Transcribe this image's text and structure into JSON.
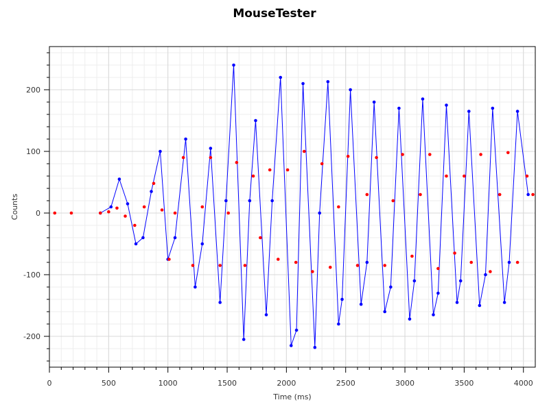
{
  "chart_data": {
    "type": "scatter",
    "title": "MouseTester",
    "xlabel": "Time (ms)",
    "ylabel": "Counts",
    "xlim": [
      0,
      4100
    ],
    "ylim": [
      -250,
      270
    ],
    "grid": true,
    "xticks": [
      0,
      500,
      1000,
      1500,
      2000,
      2500,
      3000,
      3500,
      4000
    ],
    "yticks": [
      -200,
      -100,
      0,
      100,
      200
    ],
    "series": [
      {
        "color": "#0000ff",
        "markers": true,
        "line": true,
        "x": [
          430,
          520,
          590,
          660,
          730,
          790,
          860,
          935,
          1000,
          1060,
          1150,
          1230,
          1290,
          1360,
          1440,
          1490,
          1555,
          1640,
          1690,
          1740,
          1830,
          1880,
          1950,
          2040,
          2085,
          2140,
          2240,
          2280,
          2350,
          2440,
          2470,
          2540,
          2630,
          2680,
          2740,
          2830,
          2880,
          2950,
          3040,
          3080,
          3150,
          3240,
          3280,
          3350,
          3440,
          3470,
          3540,
          3630,
          3680,
          3740,
          3840,
          3880,
          3950,
          4040
        ],
        "values": [
          0,
          10,
          55,
          15,
          -50,
          -40,
          35,
          100,
          -75,
          -40,
          120,
          -120,
          -50,
          105,
          -145,
          20,
          240,
          -205,
          20,
          150,
          -165,
          20,
          220,
          -215,
          -190,
          210,
          -218,
          0,
          213,
          -180,
          -140,
          200,
          -148,
          -80,
          180,
          -160,
          -120,
          170,
          -172,
          -110,
          185,
          -165,
          -130,
          175,
          -145,
          -110,
          165,
          -150,
          -100,
          170,
          -145,
          -80,
          165,
          30
        ]
      },
      {
        "color": "#ff0000",
        "markers": true,
        "line": false,
        "x": [
          45,
          185,
          430,
          500,
          570,
          640,
          720,
          800,
          880,
          950,
          1010,
          1060,
          1130,
          1210,
          1290,
          1360,
          1440,
          1510,
          1580,
          1650,
          1720,
          1780,
          1860,
          1930,
          2010,
          2080,
          2150,
          2220,
          2300,
          2370,
          2440,
          2520,
          2600,
          2680,
          2760,
          2830,
          2900,
          2980,
          3060,
          3130,
          3210,
          3280,
          3350,
          3420,
          3500,
          3560,
          3640,
          3720,
          3800,
          3870,
          3950,
          4030,
          4080
        ],
        "values": [
          0,
          0,
          0,
          2,
          8,
          -5,
          -20,
          10,
          48,
          5,
          -75,
          0,
          90,
          -85,
          10,
          90,
          -85,
          0,
          82,
          -85,
          60,
          -40,
          70,
          -75,
          70,
          -80,
          100,
          -95,
          80,
          -88,
          10,
          92,
          -85,
          30,
          90,
          -85,
          20,
          95,
          -70,
          30,
          95,
          -90,
          60,
          -65,
          60,
          -80,
          95,
          -95,
          30,
          98,
          -80,
          60,
          30
        ]
      }
    ]
  }
}
